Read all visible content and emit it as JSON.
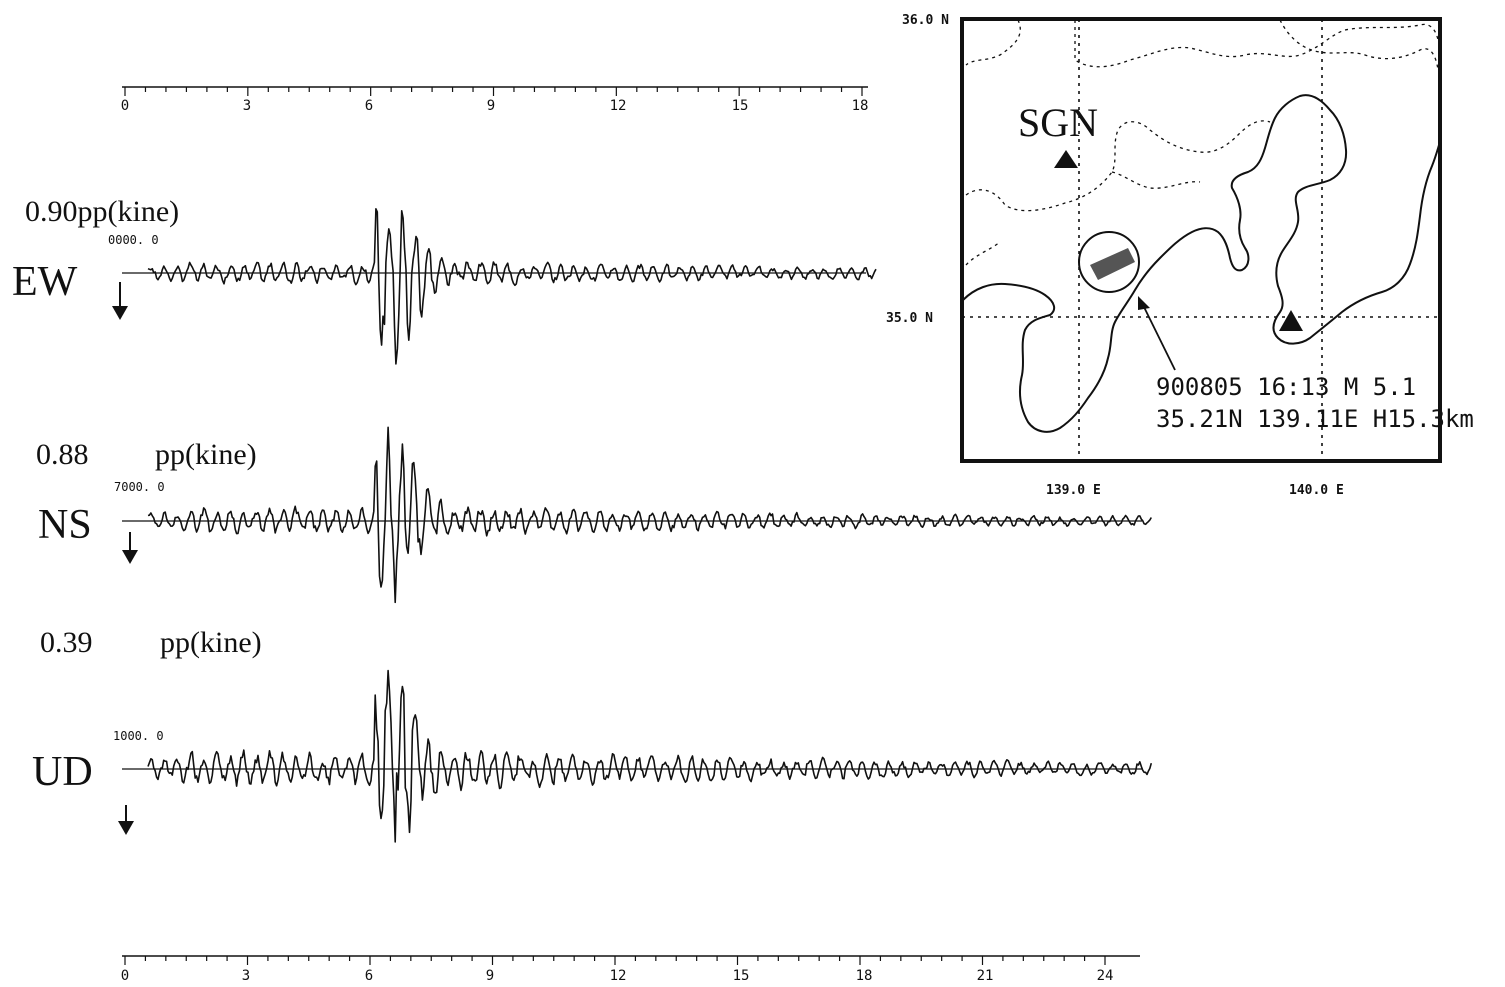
{
  "top_axis": {
    "ticks": [
      "0",
      "3",
      "6",
      "9",
      "12",
      "15",
      "18"
    ]
  },
  "bottom_axis": {
    "ticks": [
      "0",
      "3",
      "6",
      "9",
      "12",
      "15",
      "18",
      "21",
      "24"
    ]
  },
  "traces": [
    {
      "component": "EW",
      "amplitude": "0.90pp(kine)",
      "amp_value": "",
      "unit": "",
      "scale": "0000. 0"
    },
    {
      "component": "NS",
      "amplitude": "",
      "amp_value": "0.88",
      "unit": "pp(kine)",
      "scale": "7000. 0"
    },
    {
      "component": "UD",
      "amplitude": "",
      "amp_value": "0.39",
      "unit": "pp(kine)",
      "scale": "1000. 0"
    }
  ],
  "map": {
    "lat_top": "36.0 N",
    "lat_mid": "35.0 N",
    "lon_left": "139.0 E",
    "lon_right": "140.0 E",
    "station": "SGN",
    "event_line1": "900805   16:13  M 5.1",
    "event_line2": "35.21N 139.11E H15.3km"
  },
  "chart_data": {
    "type": "line",
    "xlabel": "",
    "ylabel": "",
    "xlim_top": [
      0,
      18
    ],
    "xlim_bottom": [
      0,
      24
    ],
    "series": [
      {
        "name": "EW",
        "peak_to_peak_kine": 0.9
      },
      {
        "name": "NS",
        "peak_to_peak_kine": 0.88
      },
      {
        "name": "UD",
        "peak_to_peak_kine": 0.39
      }
    ]
  }
}
